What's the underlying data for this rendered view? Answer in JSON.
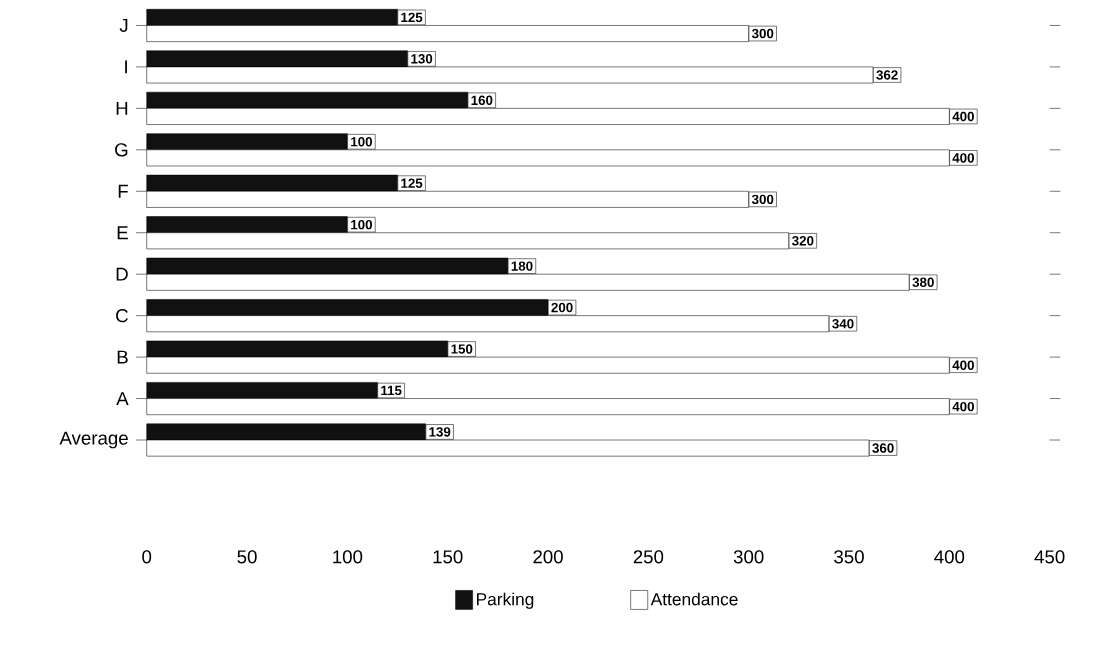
{
  "chart_data": {
    "type": "bar",
    "orientation": "horizontal",
    "categories": [
      "J",
      "I",
      "H",
      "G",
      "F",
      "E",
      "D",
      "C",
      "B",
      "A",
      "Average"
    ],
    "series": [
      {
        "name": "Parking",
        "color": "#111111",
        "values": [
          125,
          130,
          160,
          100,
          125,
          100,
          180,
          200,
          150,
          115,
          139
        ]
      },
      {
        "name": "Attendance",
        "color": "#ffffff",
        "values": [
          300,
          362,
          400,
          400,
          300,
          320,
          380,
          340,
          400,
          400,
          360
        ]
      }
    ],
    "xlim": [
      0,
      450
    ],
    "xticks": [
      0,
      50,
      100,
      150,
      200,
      250,
      300,
      350,
      400,
      450
    ],
    "data_labels": true,
    "legend": "bottom"
  }
}
